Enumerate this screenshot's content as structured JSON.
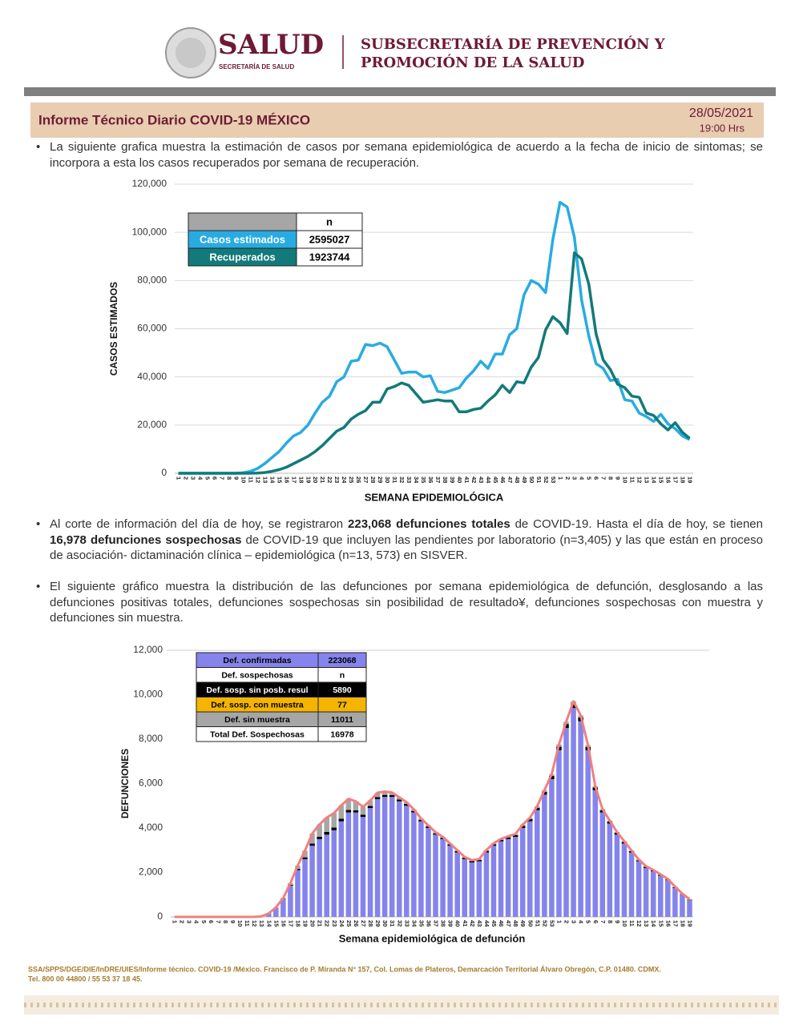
{
  "header": {
    "logo_title": "SALUD",
    "logo_subtitle": "SECRETARÍA DE SALUD",
    "unit": [
      "SUBSECRETARÍA DE PREVENCIÓN Y",
      "PROMOCIÓN DE LA SALUD"
    ]
  },
  "banner": {
    "title": "Informe Técnico Diario COVID-19 MÉXICO",
    "date": "28/05/2021",
    "time": "19:00 Hrs"
  },
  "paragraphs": [
    [
      {
        "text": "La siguiente grafica muestra la estimación de casos por semana epidemiológica de acuerdo a la fecha de inicio de sintomas; se incorpora a esta los casos recuperados por semana de recuperación."
      }
    ],
    [
      {
        "text": "Al corte de información del día de hoy, se registraron "
      },
      {
        "text": "223,068 defunciones totales",
        "bold": true
      },
      {
        "text": " de COVID-19. Hasta el día de hoy, se tienen "
      },
      {
        "text": "16,978 defunciones sospechosas",
        "bold": true
      },
      {
        "text": " de COVID-19 que incluyen las pendientes por laboratorio (n=3,405) y las que están en proceso de asociación- dictaminación clínica – epidemiológica (n=13, 573) en SISVER."
      }
    ],
    [
      {
        "text": "El siguiente gráfico muestra la distribución de las defunciones por semana epidemiológica de defunción, desglosando a las defunciones positivas totales, defunciones sospechosas sin posibilidad de resultado¥, defunciones sospechosas con muestra y defunciones sin muestra."
      }
    ]
  ],
  "chart_data": [
    {
      "type": "line",
      "ylabel": "CASOS ESTIMADOS",
      "xlabel": "SEMANA EPIDEMIOLÓGICA",
      "ylim": [
        0,
        120000
      ],
      "yticks": [
        0,
        {
          "value": 20000,
          "label": "20,000"
        },
        {
          "value": 40000,
          "label": "40,000"
        },
        {
          "value": 60000,
          "label": "60,000"
        },
        {
          "value": 80000,
          "label": "80,000"
        },
        {
          "value": 100000,
          "label": "100,000"
        },
        {
          "value": 120000,
          "label": "120,000"
        }
      ],
      "grid": true,
      "legend_header": "n",
      "categories": [
        "1",
        "2",
        "3",
        "4",
        "5",
        "6",
        "7",
        "8",
        "9",
        "10",
        "11",
        "12",
        "13",
        "14",
        "15",
        "16",
        "17",
        "18",
        "19",
        "20",
        "21",
        "22",
        "23",
        "24",
        "25",
        "26",
        "27",
        "28",
        "29",
        "30",
        "31",
        "32",
        "33",
        "34",
        "35",
        "36",
        "37",
        "38",
        "39",
        "40",
        "41",
        "42",
        "43",
        "44",
        "45",
        "46",
        "47",
        "48",
        "49",
        "50",
        "51",
        "52",
        "53",
        "1",
        "2",
        "3",
        "4",
        "5",
        "6",
        "7",
        "8",
        "9",
        "10",
        "11",
        "12",
        "13",
        "14",
        "15",
        "16",
        "17",
        "18",
        "19"
      ],
      "series": [
        {
          "name": "Casos estimados",
          "color": "#29abe2",
          "label_color": "#ffffff",
          "total": 2595027,
          "values": [
            0,
            0,
            0,
            0,
            0,
            0,
            0,
            0,
            0,
            200,
            800,
            2000,
            4000,
            6500,
            9000,
            12500,
            15500,
            17000,
            20000,
            25000,
            29500,
            32000,
            38000,
            40000,
            46500,
            47000,
            53500,
            53000,
            54000,
            52500,
            47000,
            41500,
            42000,
            42000,
            40000,
            40500,
            34000,
            33500,
            34500,
            35500,
            39500,
            42500,
            46500,
            43500,
            49500,
            49500,
            57500,
            60000,
            74000,
            80000,
            78500,
            75000,
            97000,
            112500,
            110500,
            98000,
            72000,
            57000,
            45500,
            43500,
            38500,
            39000,
            30500,
            30000,
            25000,
            23500,
            21500,
            24500,
            20500,
            18500,
            15500,
            14000
          ]
        },
        {
          "name": "Recuperados",
          "color": "#127a7a",
          "label_color": "#ffffff",
          "total": 1923744,
          "values": [
            0,
            0,
            0,
            0,
            0,
            0,
            0,
            0,
            0,
            0,
            0,
            100,
            300,
            800,
            1500,
            2500,
            4000,
            5500,
            7000,
            9000,
            11500,
            14500,
            17500,
            19000,
            22500,
            24500,
            26000,
            29500,
            29500,
            35000,
            36000,
            37500,
            36500,
            33000,
            29500,
            30000,
            30500,
            30000,
            30000,
            25500,
            25500,
            26500,
            27000,
            30000,
            32500,
            36500,
            33500,
            38000,
            37500,
            44000,
            48000,
            59500,
            65000,
            62500,
            58000,
            91500,
            89000,
            78500,
            58000,
            47000,
            43000,
            37000,
            35500,
            32000,
            31500,
            25000,
            24000,
            20500,
            18000,
            21000,
            17000,
            14500
          ]
        }
      ]
    },
    {
      "type": "stacked_bar",
      "ylabel": "DEFUNCIONES",
      "xlabel": "Semana epidemiológica de defunción",
      "ylim": [
        0,
        12000
      ],
      "yticks": [
        0,
        {
          "value": 2000,
          "label": "2,000"
        },
        {
          "value": 4000,
          "label": "4,000"
        },
        {
          "value": 6000,
          "label": "6,000"
        },
        {
          "value": 8000,
          "label": "8,000"
        },
        {
          "value": 10000,
          "label": "10,000"
        },
        {
          "value": 12000,
          "label": "12,000"
        }
      ],
      "grid": false,
      "outline_color": "#f08080",
      "legend_header": {
        "label": "Def. sospechosas",
        "value": "n"
      },
      "legend_total": {
        "label": "Total Def. Sospechosas",
        "value": 16978
      },
      "categories": [
        "1",
        "2",
        "3",
        "4",
        "5",
        "6",
        "7",
        "8",
        "9",
        "10",
        "11",
        "12",
        "13",
        "14",
        "15",
        "16",
        "17",
        "18",
        "19",
        "20",
        "21",
        "22",
        "23",
        "24",
        "25",
        "26",
        "27",
        "28",
        "29",
        "30",
        "31",
        "32",
        "33",
        "34",
        "35",
        "36",
        "37",
        "38",
        "39",
        "40",
        "41",
        "42",
        "43",
        "44",
        "45",
        "46",
        "47",
        "48",
        "49",
        "50",
        "51",
        "52",
        "53",
        "1",
        "2",
        "3",
        "4",
        "5",
        "6",
        "7",
        "8",
        "9",
        "10",
        "11",
        "12",
        "13",
        "14",
        "15",
        "16",
        "17",
        "18",
        "19"
      ],
      "series": [
        {
          "name": "Def. confirmadas",
          "color": "#8484ec",
          "label_color": "#000000",
          "total": 223068,
          "values": [
            0,
            0,
            0,
            0,
            0,
            0,
            0,
            0,
            0,
            0,
            0,
            0,
            20,
            150,
            400,
            800,
            1400,
            2100,
            2600,
            3200,
            3500,
            3700,
            3900,
            4300,
            4700,
            4700,
            4500,
            4900,
            5300,
            5400,
            5400,
            5200,
            5000,
            4700,
            4300,
            4000,
            3700,
            3500,
            3200,
            2900,
            2600,
            2450,
            2500,
            2900,
            3200,
            3400,
            3500,
            3600,
            4000,
            4300,
            4800,
            5500,
            6200,
            7500,
            8500,
            9400,
            8800,
            7500,
            5700,
            4700,
            4200,
            3700,
            3300,
            2900,
            2500,
            2200,
            2050,
            1850,
            1650,
            1300,
            1000,
            750
          ]
        },
        {
          "name": "Def. sosp. sin posb. resul",
          "color": "#000000",
          "label_color": "#ffffff",
          "total": 5890,
          "values": [
            0,
            0,
            0,
            0,
            0,
            0,
            0,
            0,
            0,
            0,
            0,
            0,
            0,
            5,
            10,
            20,
            40,
            60,
            80,
            100,
            110,
            120,
            120,
            120,
            110,
            100,
            100,
            90,
            90,
            90,
            80,
            80,
            80,
            70,
            70,
            70,
            60,
            60,
            60,
            60,
            60,
            60,
            60,
            70,
            70,
            70,
            80,
            80,
            90,
            100,
            110,
            120,
            140,
            160,
            180,
            200,
            180,
            150,
            120,
            100,
            90,
            80,
            70,
            60,
            50,
            50,
            40,
            40,
            30,
            30,
            20,
            20
          ]
        },
        {
          "name": "Def. sosp. con  muestra",
          "color": "#f5b400",
          "label_color": "#000000",
          "total": 77,
          "values": [
            0,
            0,
            0,
            0,
            0,
            0,
            0,
            0,
            0,
            0,
            0,
            0,
            0,
            0,
            0,
            0,
            0,
            0,
            0,
            0,
            0,
            0,
            0,
            0,
            0,
            0,
            0,
            0,
            0,
            0,
            0,
            0,
            0,
            0,
            0,
            0,
            0,
            0,
            0,
            0,
            0,
            0,
            0,
            0,
            0,
            0,
            0,
            0,
            0,
            0,
            0,
            0,
            0,
            0,
            0,
            0,
            0,
            0,
            0,
            0,
            0,
            0,
            0,
            0,
            1,
            2,
            3,
            5,
            8,
            10,
            15,
            20
          ]
        },
        {
          "name": "Def. sin muestra",
          "color": "#a6a6a6",
          "label_color": "#000000",
          "total": 11011,
          "values": [
            0,
            0,
            0,
            0,
            0,
            0,
            0,
            0,
            0,
            0,
            0,
            0,
            0,
            0,
            10,
            30,
            80,
            150,
            300,
            450,
            550,
            650,
            650,
            600,
            500,
            400,
            350,
            250,
            200,
            150,
            120,
            100,
            80,
            70,
            60,
            50,
            50,
            40,
            40,
            40,
            40,
            40,
            40,
            40,
            40,
            40,
            50,
            50,
            60,
            60,
            70,
            80,
            80,
            100,
            100,
            100,
            90,
            80,
            60,
            50,
            40,
            40,
            30,
            30,
            30,
            30,
            20,
            20,
            20,
            20,
            10,
            10
          ]
        }
      ]
    }
  ],
  "footer": [
    "SSA/SPPS/DGE/DIE/InDRE/UIES/Informe técnico. COVID-19 /México. Francisco de P. Miranda N° 157, Col. Lomas de Plateros, Demarcación Territorial Álvaro Obregón, C.P. 01480. CDMX.",
    "Tel. 800 00 44800 / 55 53 37 18 45."
  ]
}
